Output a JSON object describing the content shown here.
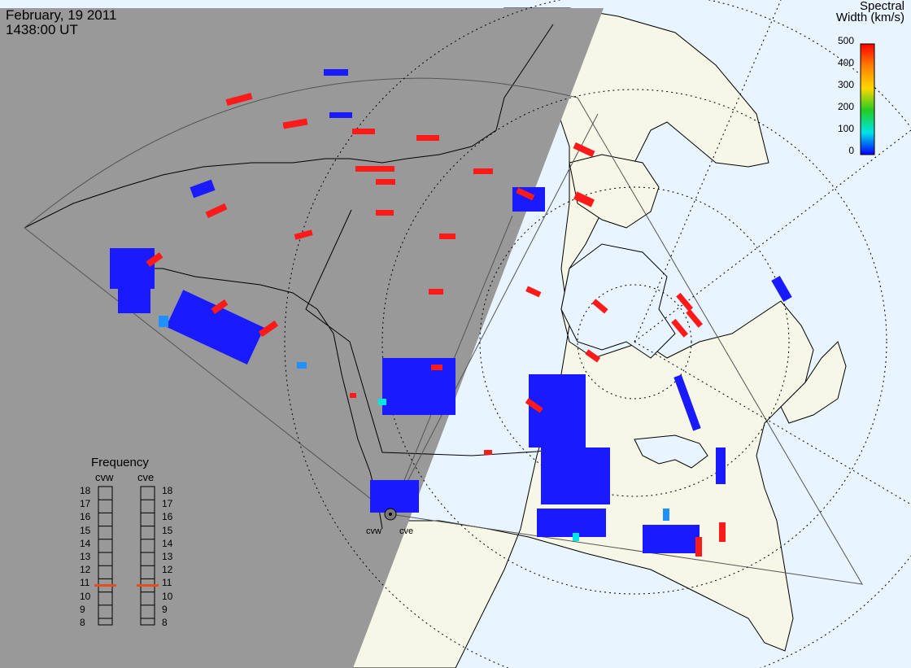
{
  "title": {
    "date": "February, 19 2011",
    "time": "1438:00 UT"
  },
  "colorbar": {
    "title_line1": "Spectral",
    "title_line2": "Width (km/s)",
    "ticks": [
      "500",
      "400",
      "300",
      "200",
      "100",
      "0"
    ],
    "colors": [
      "#ff0000",
      "#ff7f00",
      "#ffd700",
      "#22cc22",
      "#00e5e5",
      "#0000ff"
    ]
  },
  "frequency_panel": {
    "title": "Frequency",
    "radars": [
      "cvw",
      "cve"
    ],
    "ticks": [
      "18",
      "17",
      "16",
      "15",
      "14",
      "13",
      "12",
      "11",
      "10",
      "9",
      "8"
    ],
    "marker_value": 11,
    "marker_color": "#e05020"
  },
  "sites": [
    {
      "name": "cvw"
    },
    {
      "name": "cve"
    }
  ],
  "colors": {
    "night_shade": "#999999",
    "land_day": "#f7f7e8",
    "ocean_day": "#e8f4ff",
    "backscatter_low": "#1a1aff",
    "backscatter_high": "#ff1a1a"
  }
}
